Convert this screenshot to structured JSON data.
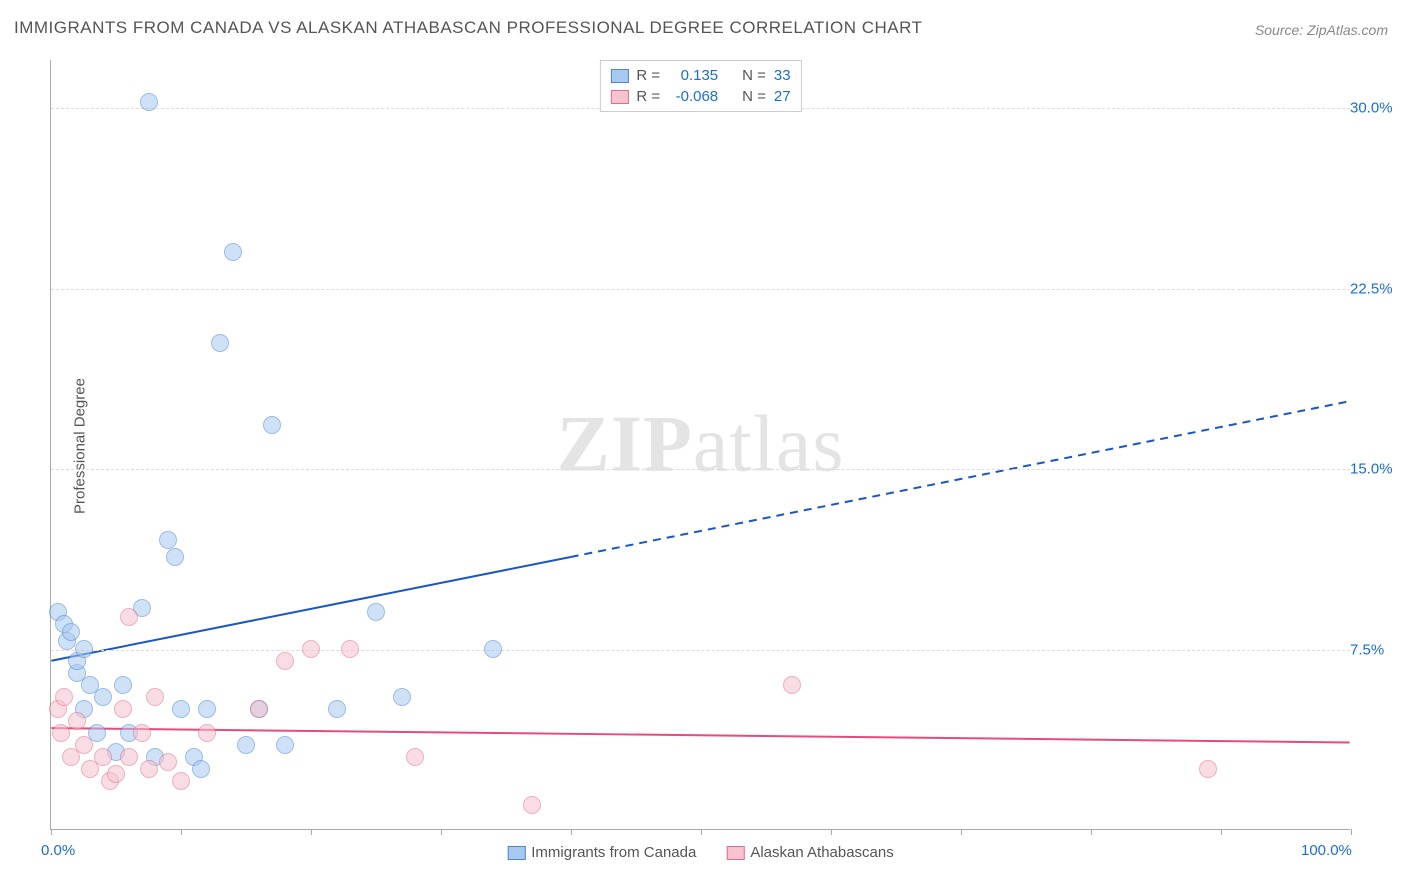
{
  "title": "IMMIGRANTS FROM CANADA VS ALASKAN ATHABASCAN PROFESSIONAL DEGREE CORRELATION CHART",
  "source": "Source: ZipAtlas.com",
  "ylabel": "Professional Degree",
  "watermark": {
    "part1": "ZIP",
    "part2": "atlas"
  },
  "chart": {
    "type": "scatter",
    "xlim": [
      0,
      100
    ],
    "ylim": [
      0,
      32
    ],
    "xticks": [
      {
        "pos": 0,
        "label": "0.0%"
      },
      {
        "pos": 10,
        "label": ""
      },
      {
        "pos": 20,
        "label": ""
      },
      {
        "pos": 30,
        "label": ""
      },
      {
        "pos": 40,
        "label": ""
      },
      {
        "pos": 50,
        "label": ""
      },
      {
        "pos": 60,
        "label": ""
      },
      {
        "pos": 70,
        "label": ""
      },
      {
        "pos": 80,
        "label": ""
      },
      {
        "pos": 90,
        "label": ""
      },
      {
        "pos": 100,
        "label": "100.0%"
      }
    ],
    "yticks": [
      {
        "pos": 7.5,
        "label": "7.5%"
      },
      {
        "pos": 15.0,
        "label": "15.0%"
      },
      {
        "pos": 22.5,
        "label": "22.5%"
      },
      {
        "pos": 30.0,
        "label": "30.0%"
      }
    ],
    "gridline_color": "#dddddd",
    "axis_color": "#aaaaaa",
    "background_color": "#ffffff",
    "point_radius": 9,
    "point_opacity": 0.55
  },
  "series": {
    "blue": {
      "label": "Immigrants from Canada",
      "fill": "#a7c9ef",
      "stroke": "#4a87d6",
      "R": "0.135",
      "N": "33",
      "trend": {
        "x1": 0,
        "y1": 7.0,
        "x2": 100,
        "y2": 17.8,
        "solid_until_x": 40,
        "color": "#1a56c9",
        "width": 2
      },
      "points": [
        {
          "x": 0.5,
          "y": 9.0
        },
        {
          "x": 1.0,
          "y": 8.5
        },
        {
          "x": 1.2,
          "y": 7.8
        },
        {
          "x": 1.5,
          "y": 8.2
        },
        {
          "x": 2.0,
          "y": 6.5
        },
        {
          "x": 2.0,
          "y": 7.0
        },
        {
          "x": 2.5,
          "y": 7.5
        },
        {
          "x": 2.5,
          "y": 5.0
        },
        {
          "x": 3.0,
          "y": 6.0
        },
        {
          "x": 3.5,
          "y": 4.0
        },
        {
          "x": 4.0,
          "y": 5.5
        },
        {
          "x": 5.0,
          "y": 3.2
        },
        {
          "x": 5.5,
          "y": 6.0
        },
        {
          "x": 6.0,
          "y": 4.0
        },
        {
          "x": 7.0,
          "y": 9.2
        },
        {
          "x": 7.5,
          "y": 30.2
        },
        {
          "x": 8.0,
          "y": 3.0
        },
        {
          "x": 9.0,
          "y": 12.0
        },
        {
          "x": 9.5,
          "y": 11.3
        },
        {
          "x": 10.0,
          "y": 5.0
        },
        {
          "x": 11.0,
          "y": 3.0
        },
        {
          "x": 11.5,
          "y": 2.5
        },
        {
          "x": 12.0,
          "y": 5.0
        },
        {
          "x": 13.0,
          "y": 20.2
        },
        {
          "x": 14.0,
          "y": 24.0
        },
        {
          "x": 15.0,
          "y": 3.5
        },
        {
          "x": 16.0,
          "y": 5.0
        },
        {
          "x": 17.0,
          "y": 16.8
        },
        {
          "x": 18.0,
          "y": 3.5
        },
        {
          "x": 22.0,
          "y": 5.0
        },
        {
          "x": 25.0,
          "y": 9.0
        },
        {
          "x": 27.0,
          "y": 5.5
        },
        {
          "x": 34.0,
          "y": 7.5
        }
      ]
    },
    "pink": {
      "label": "Alaskan Athabascans",
      "fill": "#f7c3ce",
      "stroke": "#e16f8c",
      "R": "-0.068",
      "N": "27",
      "trend": {
        "x1": 0,
        "y1": 4.2,
        "x2": 100,
        "y2": 3.6,
        "solid_until_x": 100,
        "color": "#e84a7a",
        "width": 2
      },
      "points": [
        {
          "x": 0.5,
          "y": 5.0
        },
        {
          "x": 0.8,
          "y": 4.0
        },
        {
          "x": 1.0,
          "y": 5.5
        },
        {
          "x": 1.5,
          "y": 3.0
        },
        {
          "x": 2.0,
          "y": 4.5
        },
        {
          "x": 2.5,
          "y": 3.5
        },
        {
          "x": 3.0,
          "y": 2.5
        },
        {
          "x": 4.0,
          "y": 3.0
        },
        {
          "x": 4.5,
          "y": 2.0
        },
        {
          "x": 5.0,
          "y": 2.3
        },
        {
          "x": 5.5,
          "y": 5.0
        },
        {
          "x": 6.0,
          "y": 8.8
        },
        {
          "x": 6.0,
          "y": 3.0
        },
        {
          "x": 7.0,
          "y": 4.0
        },
        {
          "x": 7.5,
          "y": 2.5
        },
        {
          "x": 8.0,
          "y": 5.5
        },
        {
          "x": 9.0,
          "y": 2.8
        },
        {
          "x": 10.0,
          "y": 2.0
        },
        {
          "x": 12.0,
          "y": 4.0
        },
        {
          "x": 16.0,
          "y": 5.0
        },
        {
          "x": 18.0,
          "y": 7.0
        },
        {
          "x": 20.0,
          "y": 7.5
        },
        {
          "x": 23.0,
          "y": 7.5
        },
        {
          "x": 28.0,
          "y": 3.0
        },
        {
          "x": 37.0,
          "y": 1.0
        },
        {
          "x": 57.0,
          "y": 6.0
        },
        {
          "x": 89.0,
          "y": 2.5
        }
      ]
    }
  },
  "legend_top": {
    "r_label": "R =",
    "n_label": "N ="
  }
}
